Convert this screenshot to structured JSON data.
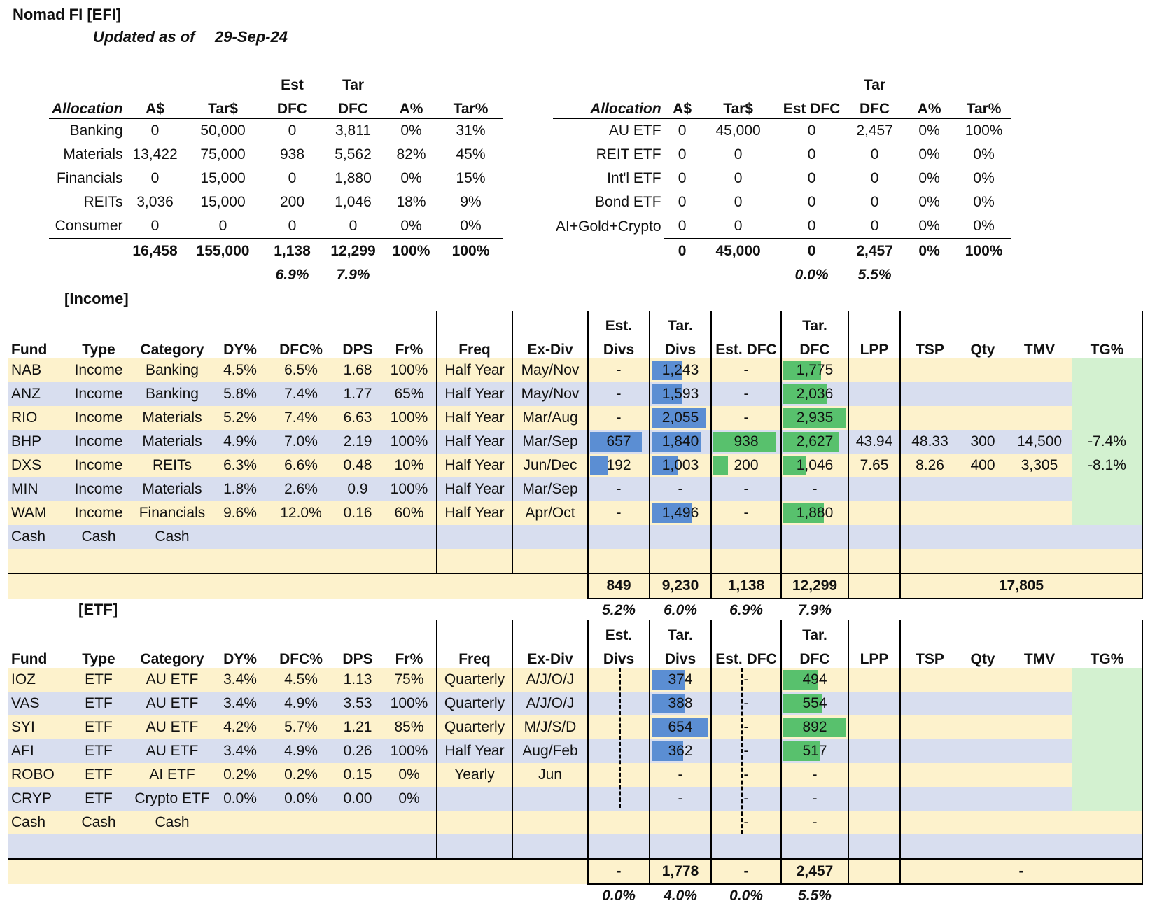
{
  "header": {
    "title": "Nomad FI [EFI]",
    "updated_label": "Updated as of",
    "updated_date": "29-Sep-24"
  },
  "alloc_left": {
    "head_top": [
      "",
      "",
      "",
      "Est",
      "Tar",
      "",
      ""
    ],
    "head": [
      "Allocation",
      "A$",
      "Tar$",
      "DFC",
      "DFC",
      "A%",
      "Tar%"
    ],
    "rows": [
      [
        "Banking",
        "0",
        "50,000",
        "0",
        "3,811",
        "0%",
        "31%"
      ],
      [
        "Materials",
        "13,422",
        "75,000",
        "938",
        "5,562",
        "82%",
        "45%"
      ],
      [
        "Financials",
        "0",
        "15,000",
        "0",
        "1,880",
        "0%",
        "15%"
      ],
      [
        "REITs",
        "3,036",
        "15,000",
        "200",
        "1,046",
        "18%",
        "9%"
      ],
      [
        "Consumer",
        "0",
        "0",
        "0",
        "0",
        "0%",
        "0%"
      ]
    ],
    "total": [
      "",
      "16,458",
      "155,000",
      "1,138",
      "12,299",
      "100%",
      "100%"
    ],
    "pct": [
      "",
      "",
      "",
      "6.9%",
      "7.9%",
      "",
      ""
    ]
  },
  "alloc_right": {
    "head_top": [
      "",
      "",
      "",
      "",
      "Tar",
      "",
      ""
    ],
    "head": [
      "Allocation",
      "A$",
      "Tar$",
      "Est DFC",
      "DFC",
      "A%",
      "Tar%"
    ],
    "rows": [
      [
        "AU ETF",
        "0",
        "45,000",
        "0",
        "2,457",
        "0%",
        "100%"
      ],
      [
        "REIT ETF",
        "0",
        "0",
        "0",
        "0",
        "0%",
        "0%"
      ],
      [
        "Int'l ETF",
        "0",
        "0",
        "0",
        "0",
        "0%",
        "0%"
      ],
      [
        "Bond ETF",
        "0",
        "0",
        "0",
        "0",
        "0%",
        "0%"
      ],
      [
        "AI+Gold+Crypto",
        "0",
        "0",
        "0",
        "0",
        "0%",
        "0%"
      ]
    ],
    "total": [
      "",
      "0",
      "45,000",
      "0",
      "2,457",
      "0%",
      "100%"
    ],
    "pct": [
      "",
      "",
      "",
      "0.0%",
      "5.5%",
      "",
      ""
    ]
  },
  "income": {
    "label": "[Income]",
    "head_top": [
      "",
      "",
      "",
      "",
      "",
      "",
      "",
      "",
      "",
      "Est.",
      "Tar.",
      "",
      "Tar.",
      "",
      "",
      "",
      "",
      ""
    ],
    "head": [
      "Fund",
      "Type",
      "Category",
      "DY%",
      "DFC%",
      "DPS",
      "Fr%",
      "Freq",
      "Ex-Div",
      "Divs",
      "Divs",
      "Est. DFC",
      "DFC",
      "LPP",
      "TSP",
      "Qty",
      "TMV",
      "TG%"
    ],
    "rows": [
      [
        "NAB",
        "Income",
        "Banking",
        "4.5%",
        "6.5%",
        "1.68",
        "100%",
        "Half Year",
        "May/Nov",
        "-",
        "1,243",
        "-",
        "1,775",
        "",
        "",
        "",
        "",
        ""
      ],
      [
        "ANZ",
        "Income",
        "Banking",
        "5.8%",
        "7.4%",
        "1.77",
        "65%",
        "Half Year",
        "May/Nov",
        "-",
        "1,593",
        "-",
        "2,036",
        "",
        "",
        "",
        "",
        ""
      ],
      [
        "RIO",
        "Income",
        "Materials",
        "5.2%",
        "7.4%",
        "6.63",
        "100%",
        "Half Year",
        "Mar/Aug",
        "-",
        "2,055",
        "-",
        "2,935",
        "",
        "",
        "",
        "",
        ""
      ],
      [
        "BHP",
        "Income",
        "Materials",
        "4.9%",
        "7.0%",
        "2.19",
        "100%",
        "Half Year",
        "Mar/Sep",
        "657",
        "1,840",
        "938",
        "2,627",
        "43.94",
        "48.33",
        "300",
        "14,500",
        "-7.4%"
      ],
      [
        "DXS",
        "Income",
        "REITs",
        "6.3%",
        "6.6%",
        "0.48",
        "10%",
        "Half Year",
        "Jun/Dec",
        "192",
        "1,003",
        "200",
        "1,046",
        "7.65",
        "8.26",
        "400",
        "3,305",
        "-8.1%"
      ],
      [
        "MIN",
        "Income",
        "Materials",
        "1.8%",
        "2.6%",
        "0.9",
        "100%",
        "Half Year",
        "Mar/Sep",
        "-",
        "-",
        "-",
        "-",
        "",
        "",
        "",
        "",
        ""
      ],
      [
        "WAM",
        "Income",
        "Financials",
        "9.6%",
        "12.0%",
        "0.16",
        "60%",
        "Half Year",
        "Apr/Oct",
        "-",
        "1,496",
        "-",
        "1,880",
        "",
        "",
        "",
        "",
        ""
      ],
      [
        "Cash",
        "Cash",
        "Cash",
        "",
        "",
        "",
        "",
        "",
        "",
        "",
        "",
        "",
        "",
        "",
        "",
        "",
        "",
        ""
      ],
      [
        "",
        "",
        "",
        "",
        "",
        "",
        "",
        "",
        "",
        "",
        "",
        "",
        "",
        "",
        "",
        "",
        "",
        ""
      ]
    ],
    "bars_est_divs": [
      0,
      0,
      0,
      0.9,
      0.3,
      0,
      0
    ],
    "bars_tar_divs": [
      0.52,
      0.52,
      0.95,
      0.85,
      0.46,
      0,
      0.69
    ],
    "bars_est_dfc": [
      0,
      0,
      0,
      0.95,
      0.22,
      0,
      0
    ],
    "bars_tar_dfc": [
      0.6,
      0.69,
      1.0,
      0.89,
      0.36,
      0,
      0.64
    ],
    "total": [
      "849",
      "9,230",
      "1,138",
      "12,299",
      "17,805"
    ],
    "pct": [
      "5.2%",
      "6.0%",
      "6.9%",
      "7.9%"
    ]
  },
  "etf": {
    "label": "[ETF]",
    "head_top": [
      "",
      "",
      "",
      "",
      "",
      "",
      "",
      "",
      "",
      "Est.",
      "Tar.",
      "",
      "Tar.",
      "",
      "",
      "",
      "",
      ""
    ],
    "head": [
      "Fund",
      "Type",
      "Category",
      "DY%",
      "DFC%",
      "DPS",
      "Fr%",
      "Freq",
      "Ex-Div",
      "Divs",
      "Divs",
      "Est. DFC",
      "DFC",
      "LPP",
      "TSP",
      "Qty",
      "TMV",
      "TG%"
    ],
    "rows": [
      [
        "IOZ",
        "ETF",
        "AU ETF",
        "3.4%",
        "4.5%",
        "1.13",
        "75%",
        "Quarterly",
        "A/J/O/J",
        "",
        "374",
        "-",
        "494",
        "",
        "",
        "",
        "",
        ""
      ],
      [
        "VAS",
        "ETF",
        "AU ETF",
        "3.4%",
        "4.9%",
        "3.53",
        "100%",
        "Quarterly",
        "A/J/O/J",
        "",
        "388",
        "-",
        "554",
        "",
        "",
        "",
        "",
        ""
      ],
      [
        "SYI",
        "ETF",
        "AU ETF",
        "4.2%",
        "5.7%",
        "1.21",
        "85%",
        "Quarterly",
        "M/J/S/D",
        "",
        "654",
        "-",
        "892",
        "",
        "",
        "",
        "",
        ""
      ],
      [
        "AFI",
        "ETF",
        "AU ETF",
        "3.4%",
        "4.9%",
        "0.26",
        "100%",
        "Half Year",
        "Aug/Feb",
        "",
        "362",
        "-",
        "517",
        "",
        "",
        "",
        "",
        ""
      ],
      [
        "ROBO",
        "ETF",
        "AI ETF",
        "0.2%",
        "0.2%",
        "0.15",
        "0%",
        "Yearly",
        "Jun",
        "",
        "-",
        "-",
        "-",
        "",
        "",
        "",
        "",
        ""
      ],
      [
        "CRYP",
        "ETF",
        "Crypto ETF",
        "0.0%",
        "0.0%",
        "0.00",
        "0%",
        "",
        "",
        "",
        "-",
        "-",
        "-",
        "",
        "",
        "",
        "",
        ""
      ],
      [
        "Cash",
        "Cash",
        "Cash",
        "",
        "",
        "",
        "",
        "",
        "",
        "",
        "",
        "-",
        "-",
        "",
        "",
        "",
        "",
        ""
      ],
      [
        "",
        "",
        "",
        "",
        "",
        "",
        "",
        "",
        "",
        "",
        "",
        "",
        "",
        "",
        "",
        "",
        "",
        ""
      ]
    ],
    "bars_tar_divs": [
      0.57,
      0.59,
      0.97,
      0.55,
      0,
      0,
      0
    ],
    "bars_tar_dfc": [
      0.55,
      0.62,
      1.0,
      0.58,
      0,
      0,
      0
    ],
    "total": [
      "-",
      "1,778",
      "-",
      "2,457",
      "-"
    ],
    "pct": [
      "0.0%",
      "4.0%",
      "0.0%",
      "5.5%"
    ]
  }
}
